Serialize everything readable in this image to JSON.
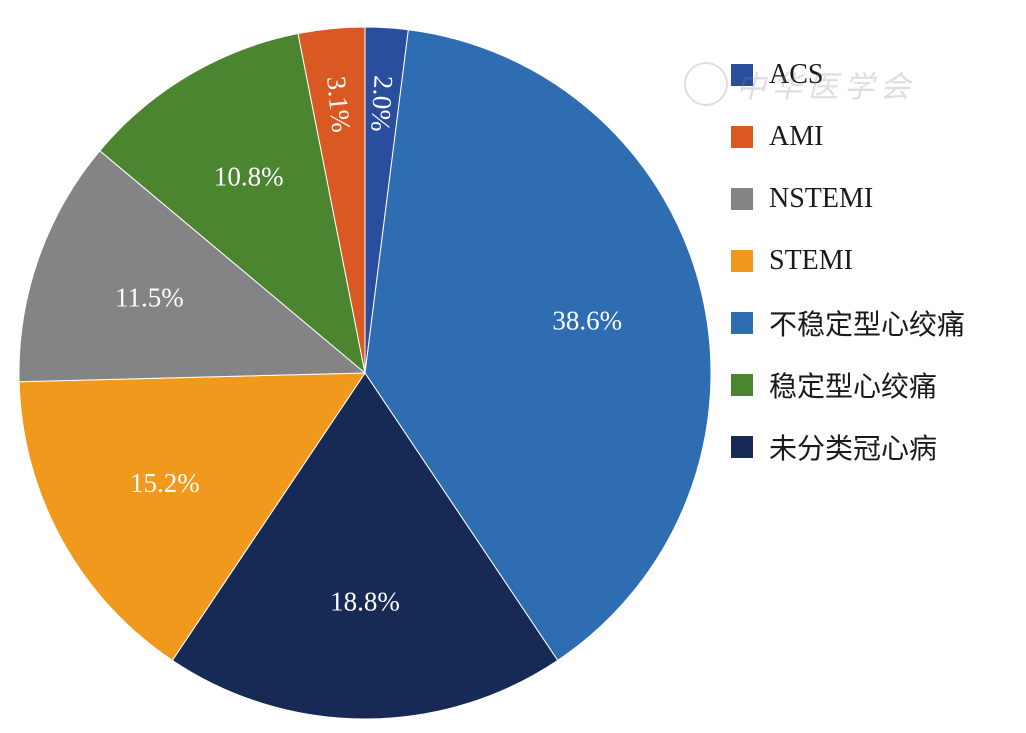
{
  "chart_data": {
    "type": "pie",
    "title": "",
    "slices": [
      {
        "label": "ACS",
        "value": 2.0,
        "display": "2.0%",
        "color": "#2a4e9d",
        "label_rotated": true
      },
      {
        "label": "不稳定型心绞痛",
        "value": 38.6,
        "display": "38.6%",
        "color": "#2f6db3",
        "label_rotated": false
      },
      {
        "label": "未分类冠心病",
        "value": 18.8,
        "display": "18.8%",
        "color": "#172a55",
        "label_rotated": false
      },
      {
        "label": "STEMI",
        "value": 15.2,
        "display": "15.2%",
        "color": "#f0991d",
        "label_rotated": false
      },
      {
        "label": "NSTEMI",
        "value": 11.5,
        "display": "11.5%",
        "color": "#848487",
        "label_rotated": false
      },
      {
        "label": "稳定型心绞痛",
        "value": 10.8,
        "display": "10.8%",
        "color": "#4c8530",
        "label_rotated": false
      },
      {
        "label": "AMI",
        "value": 3.1,
        "display": "3.1%",
        "color": "#da5923",
        "label_rotated": true
      }
    ],
    "start_angle_deg": 0,
    "direction": "clockwise",
    "legend_position": "right",
    "legend": [
      {
        "label": "ACS",
        "color": "#2a4e9d"
      },
      {
        "label": "AMI",
        "color": "#da5923"
      },
      {
        "label": "NSTEMI",
        "color": "#848487"
      },
      {
        "label": "STEMI",
        "color": "#f0991d"
      },
      {
        "label": "不稳定型心绞痛",
        "color": "#2f6db3"
      },
      {
        "label": "稳定型心绞痛",
        "color": "#4c8530"
      },
      {
        "label": "未分类冠心病",
        "color": "#172a55"
      }
    ]
  },
  "watermark": {
    "text": "中华医学会"
  }
}
